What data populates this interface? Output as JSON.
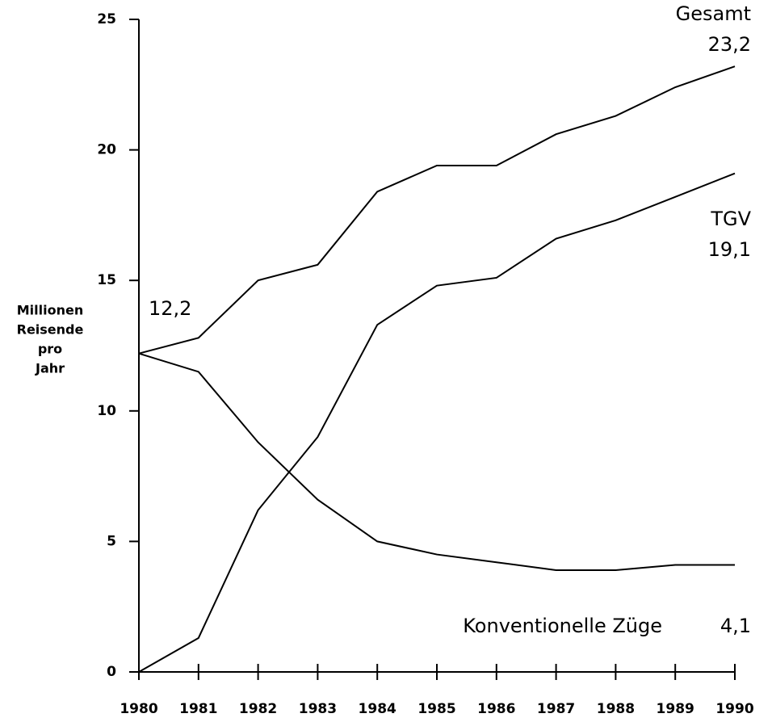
{
  "chart_data": {
    "type": "line",
    "y_label_lines": [
      "Millionen",
      "Reisende",
      "pro",
      "Jahr"
    ],
    "x": [
      1980,
      1981,
      1982,
      1983,
      1984,
      1985,
      1986,
      1987,
      1988,
      1989,
      1990
    ],
    "xlim": [
      1980,
      1990
    ],
    "xticks": [
      1980,
      1981,
      1982,
      1983,
      1984,
      1985,
      1986,
      1987,
      1988,
      1989,
      1990
    ],
    "ylim": [
      0,
      25
    ],
    "yticks": [
      0,
      5,
      10,
      15,
      20,
      25
    ],
    "grid": false,
    "series": [
      {
        "name": "Gesamt",
        "color": "#000000",
        "values": [
          12.2,
          12.8,
          15.0,
          15.6,
          18.4,
          19.4,
          19.4,
          20.6,
          21.3,
          22.4,
          23.2
        ]
      },
      {
        "name": "TGV",
        "color": "#000000",
        "values": [
          0,
          1.3,
          6.2,
          9.0,
          13.3,
          14.8,
          15.1,
          16.6,
          17.3,
          18.2,
          19.1
        ]
      },
      {
        "name": "Konventionelle Züge",
        "color": "#000000",
        "values": [
          12.2,
          11.5,
          8.8,
          6.6,
          5.0,
          4.5,
          4.2,
          3.9,
          3.9,
          4.1,
          4.1
        ]
      }
    ],
    "annotations": [
      "12,2",
      "23,2",
      "19,1",
      "4,1"
    ]
  }
}
